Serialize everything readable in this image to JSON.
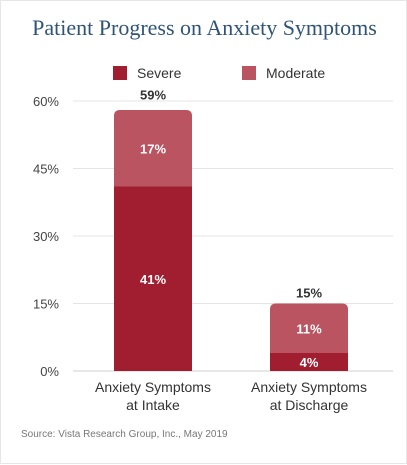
{
  "chart_data": {
    "type": "bar",
    "stacked": true,
    "title": "Patient Progress on Anxiety Symptoms",
    "categories": [
      "Anxiety Symptoms at Intake",
      "Anxiety Symptoms at Discharge"
    ],
    "category_lines": [
      [
        "Anxiety Symptoms",
        "at Intake"
      ],
      [
        "Anxiety Symptoms",
        "at Discharge"
      ]
    ],
    "series": [
      {
        "name": "Severe",
        "values": [
          41,
          4
        ],
        "labels": [
          "41%",
          "4%"
        ],
        "color": "#a01e30"
      },
      {
        "name": "Moderate",
        "values": [
          17,
          11
        ],
        "labels": [
          "17%",
          "11%"
        ],
        "color": "#ba5461"
      }
    ],
    "totals": [
      59,
      15
    ],
    "total_labels": [
      "59%",
      "15%"
    ],
    "ylim": [
      0,
      60
    ],
    "yticks": [
      0,
      15,
      30,
      45,
      60
    ],
    "ytick_labels": [
      "0%",
      "15%",
      "30%",
      "45%",
      "60%"
    ],
    "grid": true,
    "legend_position": "top"
  },
  "source": "Source: Vista Research Group, Inc., May 2019"
}
